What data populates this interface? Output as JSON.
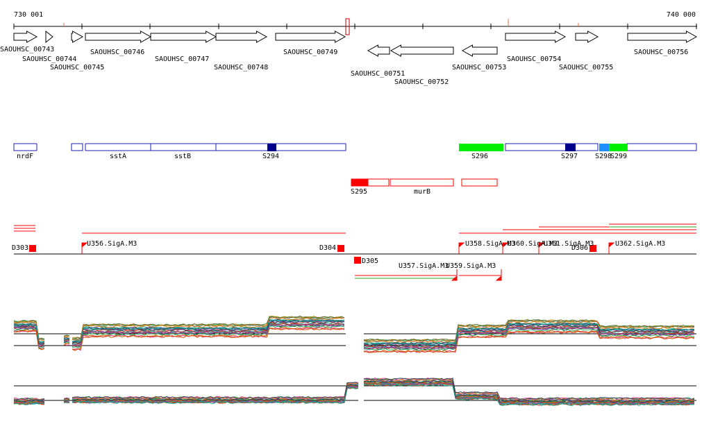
{
  "coordinates": {
    "start": "730 001",
    "end": "740 000"
  },
  "genes": [
    {
      "label": "SAOUHSC_00743",
      "strand": "+"
    },
    {
      "label": "SAOUHSC_00744",
      "strand": "+"
    },
    {
      "label": "SAOUHSC_00745",
      "strand": "+"
    },
    {
      "label": "SAOUHSC_00746",
      "strand": "+"
    },
    {
      "label": "SAOUHSC_00747",
      "strand": "+"
    },
    {
      "label": "SAOUHSC_00748",
      "strand": "+"
    },
    {
      "label": "SAOUHSC_00749",
      "strand": "+"
    },
    {
      "label": "SAOUHSC_00751",
      "strand": "-"
    },
    {
      "label": "SAOUHSC_00752",
      "strand": "-"
    },
    {
      "label": "SAOUHSC_00753",
      "strand": "-"
    },
    {
      "label": "SAOUHSC_00754",
      "strand": "+"
    },
    {
      "label": "SAOUHSC_00755",
      "strand": "+"
    },
    {
      "label": "SAOUHSC_00756",
      "strand": "+"
    }
  ],
  "features_forward": [
    {
      "label": "nrdF"
    },
    {
      "label": "sstA"
    },
    {
      "label": "sstB"
    },
    {
      "label": "S294"
    },
    {
      "label": "S296"
    },
    {
      "label": "S297"
    },
    {
      "label": "S298"
    },
    {
      "label": "S299"
    }
  ],
  "features_reverse": [
    {
      "label": "S295"
    },
    {
      "label": "murB"
    }
  ],
  "promoters": [
    {
      "label": "D303"
    },
    {
      "label": "U356.SigA.M3"
    },
    {
      "label": "D304"
    },
    {
      "label": "D305"
    },
    {
      "label": "U357.SigA.M3"
    },
    {
      "label": "U359.SigA.M3"
    },
    {
      "label": "U358.SigA.M3"
    },
    {
      "label": "U360.SigA.M3"
    },
    {
      "label": "U361.SigA.M3"
    },
    {
      "label": "D306"
    },
    {
      "label": "U362.SigA.M3"
    }
  ],
  "colors": {
    "gene_outline": "#000000",
    "feature_outline": "#1c1cb4",
    "feature_dark": "#00008b",
    "feature_green": "#00ee00",
    "feature_lightblue": "#1e90ff",
    "reverse_feature": "#ff0000",
    "promoter": "#ff0000",
    "green_line": "#22aa22"
  }
}
